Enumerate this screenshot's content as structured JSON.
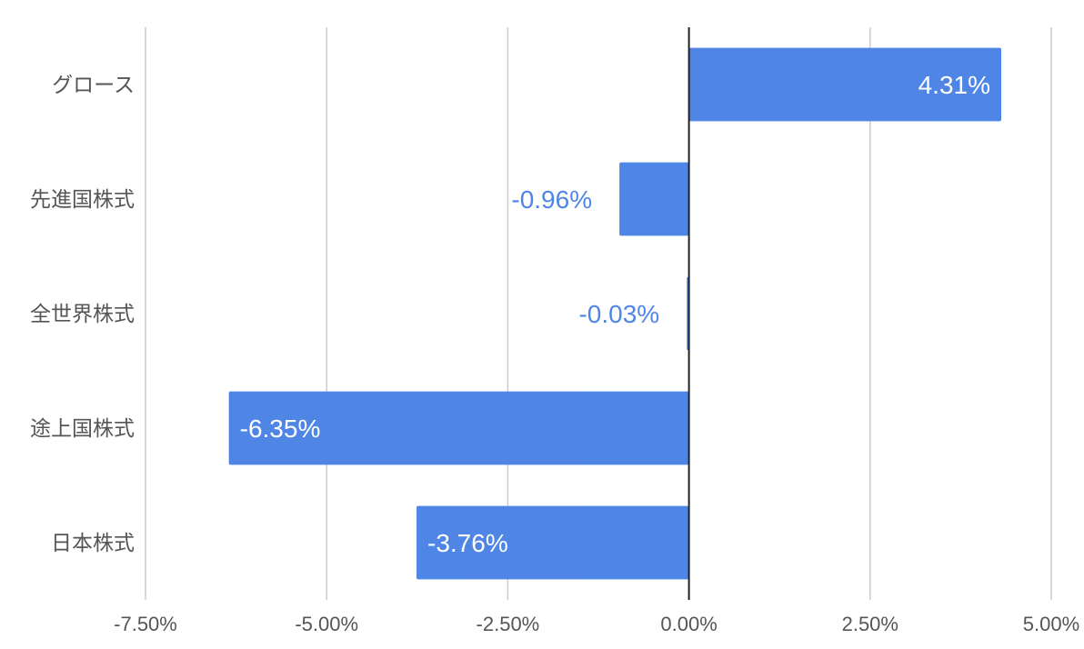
{
  "chart_data": {
    "type": "bar",
    "orientation": "horizontal",
    "categories": [
      "グロース",
      "先進国株式",
      "全世界株式",
      "途上国株式",
      "日本株式"
    ],
    "values": [
      4.31,
      -0.96,
      -0.03,
      -6.35,
      -3.76
    ],
    "data_labels": [
      "4.31%",
      "-0.96%",
      "-0.03%",
      "-6.35%",
      "-3.76%"
    ],
    "x_ticks": [
      -7.5,
      -5.0,
      -2.5,
      0.0,
      2.5,
      5.0
    ],
    "x_tick_labels": [
      "-7.50%",
      "-5.00%",
      "-2.50%",
      "0.00%",
      "2.50%",
      "5.00%"
    ],
    "xlim": [
      -7.5,
      5.0
    ],
    "title": "",
    "xlabel": "",
    "ylabel": "",
    "grid": true,
    "legend": "none",
    "colors": {
      "bar": "#4f86e6",
      "grid": "#cccccc",
      "zero_line": "#222222",
      "axis_text": "#555555",
      "label_inside": "#ffffff",
      "label_outside": "#4f86e6"
    }
  }
}
